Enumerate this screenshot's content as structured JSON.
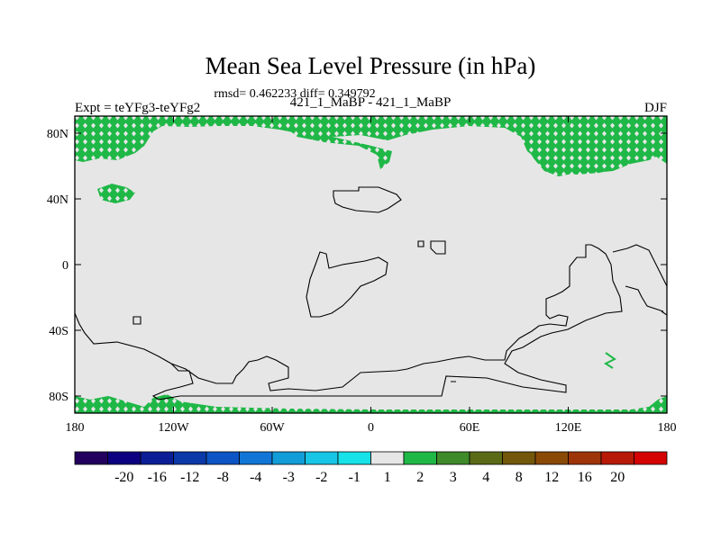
{
  "chart_data": {
    "type": "heatmap",
    "title": "Mean Sea Level Pressure (in hPa)",
    "stats_line": "rmsd= 0.462233 diff= 0.349792",
    "left_label": "Expt = teYFg3-teYFg2",
    "center_label": "421_1_MaBP - 421_1_MaBP",
    "right_label": "DJF",
    "x_ticks": [
      "180",
      "120W",
      "60W",
      "0",
      "60E",
      "120E",
      "180"
    ],
    "y_ticks": [
      "80N",
      "40N",
      "0",
      "40S",
      "80S"
    ],
    "x_range": [
      -180,
      180
    ],
    "y_range": [
      -90,
      90
    ],
    "colorbar": {
      "labels": [
        "-20",
        "-16",
        "-12",
        "-8",
        "-4",
        "-3",
        "-2",
        "-1",
        "1",
        "2",
        "3",
        "4",
        "8",
        "12",
        "16",
        "20"
      ],
      "colors": [
        "#23005e",
        "#0d0080",
        "#0b1e96",
        "#0b39a8",
        "#0d54c4",
        "#1176d6",
        "#129dd8",
        "#17c6e6",
        "#17e2e8",
        "#e6e6e6",
        "#1fb847",
        "#3f8a2a",
        "#5b6a17",
        "#73580b",
        "#8a4a06",
        "#9e3508",
        "#b81a08",
        "#d40202"
      ]
    },
    "background_value_color": "#e6e6e6",
    "positive_color": "#1fb847",
    "positive_regions": [
      "north-polar band 80N-90N",
      "west Greenland / North Atlantic 60N-90N",
      "Siberian Arctic 60N-90N",
      "North Pacific patch ~45N",
      "antarctic coast 80S-90S"
    ]
  }
}
